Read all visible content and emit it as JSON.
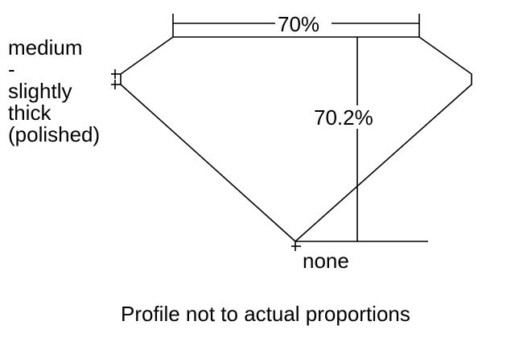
{
  "diagram": {
    "table_label": "70%",
    "depth_label": "70.2%",
    "girdle_label": "medium\n-\nslightly\nthick\n(polished)",
    "culet_label": "none",
    "caption": "Profile not to actual proportions",
    "line_color": "#000000"
  }
}
